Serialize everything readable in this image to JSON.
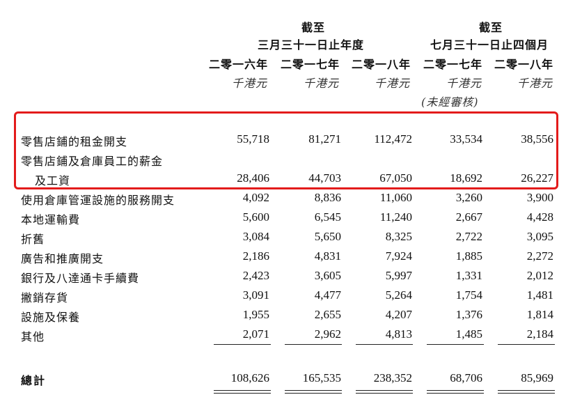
{
  "header": {
    "group1_line1": "截至",
    "group1_line2": "三月三十一日止年度",
    "group2_line1": "截至",
    "group2_line2": "七月三十一日止四個月",
    "years": [
      "二零一六年",
      "二零一七年",
      "二零一八年",
      "二零一七年",
      "二零一八年"
    ],
    "units": [
      "千港元",
      "千港元",
      "千港元",
      "千港元",
      "千港元"
    ],
    "unaudited_note": "(未經審核)"
  },
  "rows": [
    {
      "label": "零售店鋪的租金開支",
      "values": [
        "55,718",
        "81,271",
        "112,472",
        "33,534",
        "38,556"
      ]
    },
    {
      "label_line1": "零售店鋪及倉庫員工的薪金",
      "label_line2": "及工資",
      "values": [
        "28,406",
        "44,703",
        "67,050",
        "18,692",
        "26,227"
      ]
    },
    {
      "label": "使用倉庫管運設施的服務開支",
      "values": [
        "4,092",
        "8,836",
        "11,060",
        "3,260",
        "3,900"
      ]
    },
    {
      "label": "本地運輸費",
      "values": [
        "5,600",
        "6,545",
        "11,240",
        "2,667",
        "4,428"
      ]
    },
    {
      "label": "折舊",
      "values": [
        "3,084",
        "5,650",
        "8,325",
        "2,722",
        "3,095"
      ]
    },
    {
      "label": "廣告和推廣開支",
      "values": [
        "2,186",
        "4,831",
        "7,924",
        "1,885",
        "2,272"
      ]
    },
    {
      "label": "銀行及八達通卡手續費",
      "values": [
        "2,423",
        "3,605",
        "5,997",
        "1,331",
        "2,012"
      ]
    },
    {
      "label": "撇銷存貨",
      "values": [
        "3,091",
        "4,477",
        "5,264",
        "1,754",
        "1,481"
      ]
    },
    {
      "label": "設施及保養",
      "values": [
        "1,955",
        "2,655",
        "4,207",
        "1,376",
        "1,814"
      ]
    },
    {
      "label": "其他",
      "values": [
        "2,071",
        "2,962",
        "4,813",
        "1,485",
        "2,184"
      ]
    }
  ],
  "total": {
    "label": "總計",
    "values": [
      "108,626",
      "165,535",
      "238,352",
      "68,706",
      "85,969"
    ]
  },
  "colors": {
    "highlight": "#e31b1b"
  }
}
